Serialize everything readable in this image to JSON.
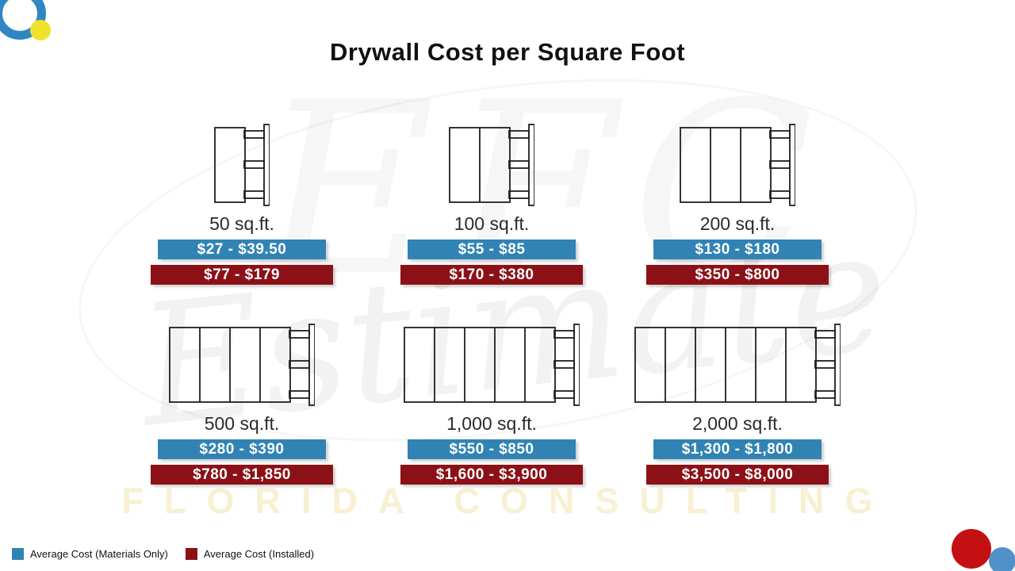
{
  "title": "Drywall Cost per Square Foot",
  "colors": {
    "materials": "#3183b4",
    "installed": "#8c1117"
  },
  "panels": [
    {
      "size_label": "50 sq.ft.",
      "materials": "$27 - $39.50",
      "installed": "$77 - $179",
      "sheets": 1
    },
    {
      "size_label": "100 sq.ft.",
      "materials": "$55 - $85",
      "installed": "$170 - $380",
      "sheets": 2
    },
    {
      "size_label": "200 sq.ft.",
      "materials": "$130 - $180",
      "installed": "$350 - $800",
      "sheets": 3
    },
    {
      "size_label": "500 sq.ft.",
      "materials": "$280 - $390",
      "installed": "$780 - $1,850",
      "sheets": 4
    },
    {
      "size_label": "1,000 sq.ft.",
      "materials": "$550 - $850",
      "installed": "$1,600 - $3,900",
      "sheets": 5
    },
    {
      "size_label": "2,000 sq.ft.",
      "materials": "$1,300 - $1,800",
      "installed": "$3,500 - $8,000",
      "sheets": 6
    }
  ],
  "legend": {
    "materials": "Average Cost (Materials Only)",
    "installed": "Average Cost (Installed)"
  },
  "watermark": {
    "monogram": "EFC",
    "script": "Estimate",
    "footer": "FLORIDA CONSULTING"
  },
  "chart_data": {
    "type": "table",
    "title": "Drywall Cost per Square Foot",
    "categories": [
      "50 sq.ft.",
      "100 sq.ft.",
      "200 sq.ft.",
      "500 sq.ft.",
      "1,000 sq.ft.",
      "2,000 sq.ft."
    ],
    "series": [
      {
        "name": "Average Cost (Materials Only)",
        "values": [
          "$27 - $39.50",
          "$55 - $85",
          "$130 - $180",
          "$280 - $390",
          "$550 - $850",
          "$1,300 - $1,800"
        ],
        "ranges_usd": [
          [
            27,
            39.5
          ],
          [
            55,
            85
          ],
          [
            130,
            180
          ],
          [
            280,
            390
          ],
          [
            550,
            850
          ],
          [
            1300,
            1800
          ]
        ],
        "color": "#3183b4"
      },
      {
        "name": "Average Cost (Installed)",
        "values": [
          "$77 - $179",
          "$170 - $380",
          "$350 - $800",
          "$780 - $1,850",
          "$1,600 - $3,900",
          "$3,500 - $8,000"
        ],
        "ranges_usd": [
          [
            77,
            179
          ],
          [
            170,
            380
          ],
          [
            350,
            800
          ],
          [
            780,
            1850
          ],
          [
            1600,
            3900
          ],
          [
            3500,
            8000
          ]
        ],
        "color": "#8c1117"
      }
    ],
    "legend_position": "bottom-left",
    "grid": false
  }
}
